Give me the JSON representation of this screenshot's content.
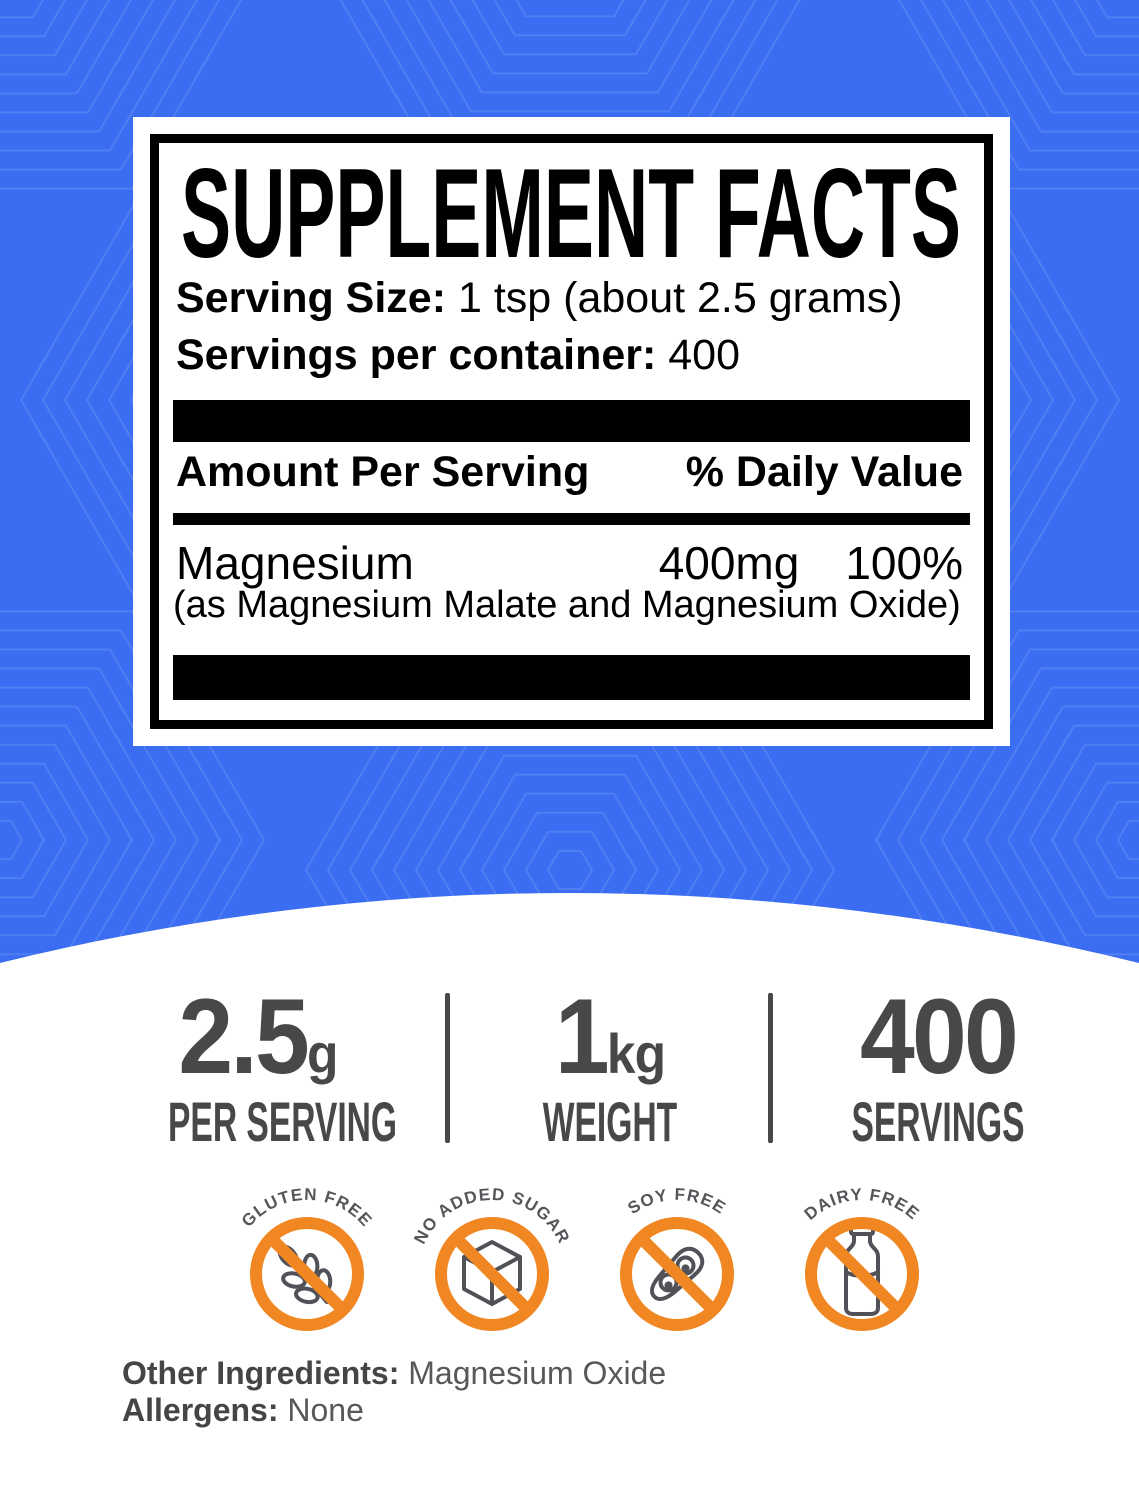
{
  "colors": {
    "blue_background": "#3B6DF2",
    "pattern_line": "#7DA2F7",
    "orange": "#F08722",
    "stat_gray": "#48484a",
    "icon_gray": "#515257"
  },
  "supplement_facts": {
    "title": "SUPPLEMENT FACTS",
    "serving_size_label": "Serving Size:",
    "serving_size_value": " 1 tsp (about 2.5 grams)",
    "servings_label": "Servings per container:",
    "servings_value": " 400",
    "amount_header": "Amount Per Serving",
    "dv_header": "% Daily Value",
    "nutrient": {
      "name": "Magnesium",
      "amount": "400mg",
      "dv": "100%",
      "source": "(as Magnesium Malate and Magnesium Oxide)"
    }
  },
  "stats": [
    {
      "value": "2.5",
      "unit": "g",
      "label": "PER SERVING"
    },
    {
      "value": "1",
      "unit": "kg",
      "label": "WEIGHT"
    },
    {
      "value": "400",
      "unit": "",
      "label": "SERVINGS"
    }
  ],
  "badges": [
    {
      "label": "GLUTEN FREE",
      "icon": "wheat"
    },
    {
      "label": "NO ADDED SUGAR",
      "icon": "sugar-cube"
    },
    {
      "label": "SOY FREE",
      "icon": "soybean"
    },
    {
      "label": "DAIRY FREE",
      "icon": "milk-bottle"
    }
  ],
  "footer": {
    "other_ingredients_label": "Other Ingredients:",
    "other_ingredients_value": " Magnesium Oxide",
    "allergens_label": "Allergens:",
    "allergens_value": " None"
  }
}
